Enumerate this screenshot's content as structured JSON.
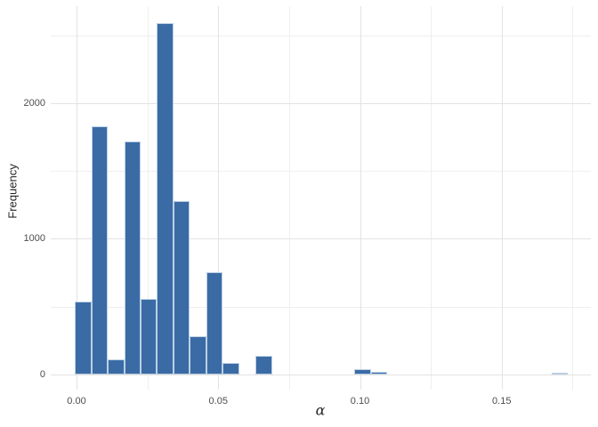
{
  "chart_data": {
    "type": "histogram",
    "title": "",
    "xlabel": "α",
    "ylabel": "Frequency",
    "x_tick_labels": [
      "0.00",
      "0.05",
      "0.10",
      "0.15"
    ],
    "x_tick_values": [
      0,
      0.05,
      0.1,
      0.15
    ],
    "y_tick_labels": [
      "0",
      "1000",
      "2000"
    ],
    "y_tick_values": [
      0,
      1000,
      2000
    ],
    "x_minor_gridlines": [
      0.025,
      0.075,
      0.125,
      0.175
    ],
    "y_minor_gridlines": [
      500,
      1500,
      2500
    ],
    "xlim": [
      -0.0091,
      0.1815
    ],
    "ylim": [
      -110,
      2715
    ],
    "grid": true,
    "legend": false,
    "bin_start": -0.0006,
    "binwidth": 0.0058,
    "counts": [
      535,
      1830,
      110,
      1720,
      555,
      2590,
      1280,
      280,
      755,
      85,
      0,
      135,
      0,
      0,
      0,
      0,
      0,
      40,
      18,
      0,
      0,
      0,
      0,
      0,
      0,
      0,
      0,
      0,
      0,
      12
    ],
    "colors": {
      "bar_fill": "#3a6ba5",
      "bar_border": "#bcd0e5",
      "grid_major": "#e3e3e3",
      "grid_minor": "#efefef",
      "tick_text": "#4d4d4d",
      "axis_title_text": "#262626",
      "background": "#ffffff"
    }
  }
}
